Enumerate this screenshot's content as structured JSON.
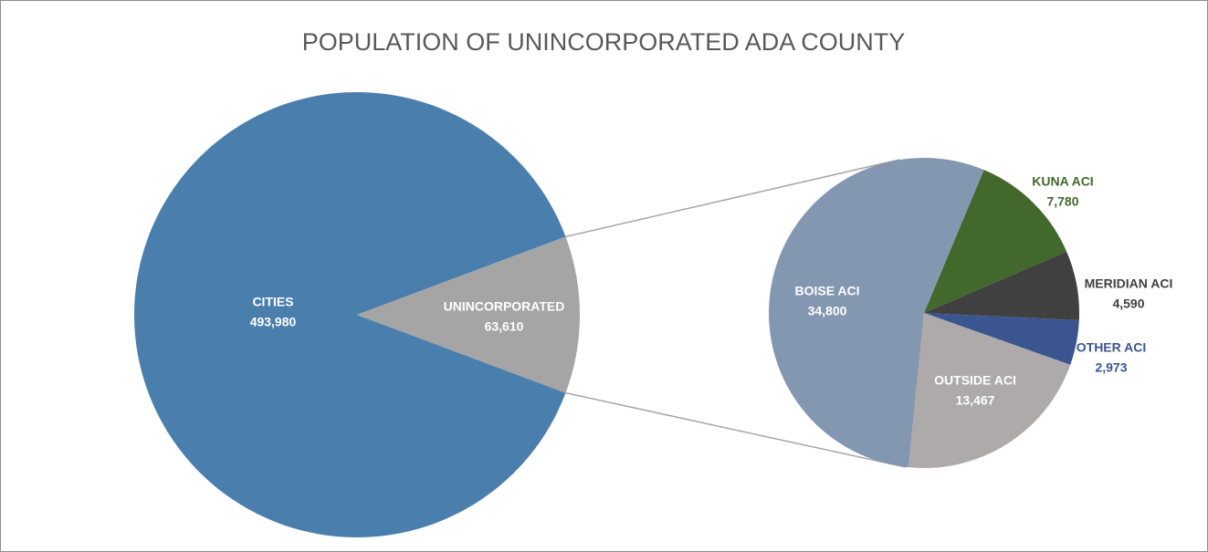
{
  "chart_data": {
    "type": "pie",
    "title": "POPULATION OF UNINCORPORATED ADA COUNTY",
    "categories": [
      "CITIES",
      "UNINCORPORATED"
    ],
    "values": [
      493980,
      63610
    ],
    "value_labels": [
      "493,980",
      "63,610"
    ],
    "colors": [
      "#4a7fad",
      "#a5a5a5"
    ],
    "breakdown": {
      "categories": [
        "KUNA ACI",
        "MERIDIAN ACI",
        "OTHER ACI",
        "OUTSIDE ACI",
        "BOISE ACI"
      ],
      "values": [
        7780,
        4590,
        2973,
        13467,
        34800
      ],
      "value_labels": [
        "7,780",
        "4,590",
        "2,973",
        "13,467",
        "34,800"
      ],
      "colors": [
        "#43682b",
        "#404040",
        "#3a5590",
        "#aeaaaa",
        "#8497b0"
      ]
    }
  }
}
